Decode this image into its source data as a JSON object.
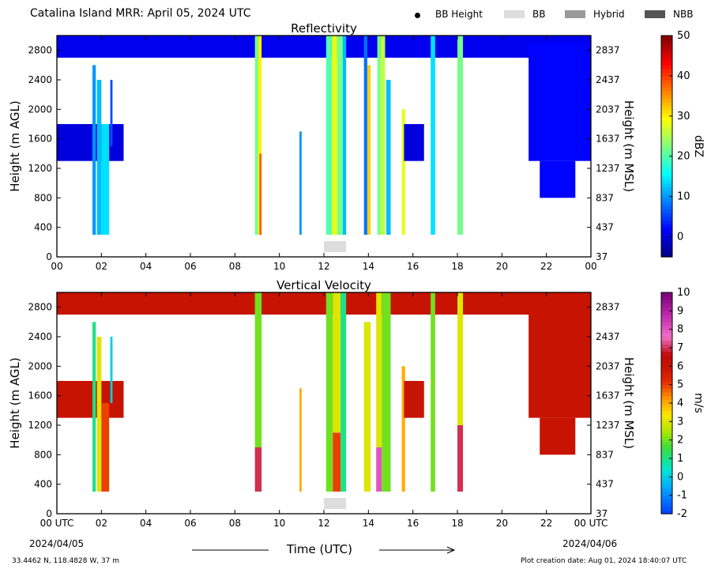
{
  "header": {
    "title": "Catalina Island MRR:  April 05, 2024 UTC",
    "legend": [
      {
        "label": "BB Height",
        "symbol": "dot",
        "color": "#000000"
      },
      {
        "label": "BB",
        "symbol": "box",
        "color": "#dddddd"
      },
      {
        "label": "Hybrid",
        "symbol": "box",
        "color": "#999999"
      },
      {
        "label": "NBB",
        "symbol": "box",
        "color": "#555555"
      }
    ]
  },
  "footer": {
    "location": "33.4462 N, 118.4828 W, 37 m",
    "creation": "Plot creation date: Aug 01, 2024 18:40:07 UTC",
    "xlabel": "Time (UTC)",
    "start_date": "2024/04/05",
    "end_date": "2024/04/06"
  },
  "chart_data": [
    {
      "type": "heatmap",
      "title": "Reflectivity",
      "ylabel": "Height (m AGL)",
      "ylabel_right": "Height (m MSL)",
      "ylim": [
        0,
        3000
      ],
      "xlim": [
        0,
        24
      ],
      "x_ticks": [
        "00",
        "02",
        "04",
        "06",
        "08",
        "10",
        "12",
        "14",
        "16",
        "18",
        "20",
        "22",
        "00"
      ],
      "y_ticks": [
        0,
        400,
        800,
        1200,
        1600,
        2000,
        2400,
        2800
      ],
      "y_ticks_right": [
        37,
        437,
        837,
        1237,
        1637,
        2037,
        2437,
        2837
      ],
      "colorbar": {
        "label": "dBZ",
        "min": -5,
        "max": 50,
        "ticks": [
          0,
          10,
          20,
          30,
          40,
          50
        ]
      },
      "bb_bars": [
        {
          "start": 12.0,
          "end": 13.0,
          "class": "BB"
        }
      ],
      "spans": [
        {
          "x0": 0.0,
          "x1": 24.0,
          "y0": 2700,
          "y1": 3000,
          "v": 1
        },
        {
          "x0": 0.0,
          "x1": 3.0,
          "y0": 1300,
          "y1": 1800,
          "v": 0
        },
        {
          "x0": 1.6,
          "x1": 1.75,
          "y0": 300,
          "y1": 2600,
          "v": 10
        },
        {
          "x0": 1.8,
          "x1": 2.0,
          "y0": 300,
          "y1": 2400,
          "v": 12
        },
        {
          "x0": 2.0,
          "x1": 2.35,
          "y0": 300,
          "y1": 1800,
          "v": 14
        },
        {
          "x0": 2.4,
          "x1": 2.5,
          "y0": 1500,
          "y1": 2400,
          "v": 6
        },
        {
          "x0": 8.9,
          "x1": 9.05,
          "y0": 300,
          "y1": 3000,
          "v": 22
        },
        {
          "x0": 9.05,
          "x1": 9.2,
          "y0": 300,
          "y1": 3000,
          "v": 30
        },
        {
          "x0": 9.1,
          "x1": 9.2,
          "y0": 300,
          "y1": 1400,
          "v": 38
        },
        {
          "x0": 10.9,
          "x1": 11.0,
          "y0": 300,
          "y1": 1700,
          "v": 10
        },
        {
          "x0": 12.1,
          "x1": 12.35,
          "y0": 300,
          "y1": 3000,
          "v": 20
        },
        {
          "x0": 12.35,
          "x1": 12.6,
          "y0": 300,
          "y1": 3000,
          "v": 28
        },
        {
          "x0": 12.6,
          "x1": 12.85,
          "y0": 300,
          "y1": 3000,
          "v": 22
        },
        {
          "x0": 12.85,
          "x1": 13.0,
          "y0": 300,
          "y1": 3000,
          "v": 12
        },
        {
          "x0": 13.8,
          "x1": 13.95,
          "y0": 300,
          "y1": 3000,
          "v": 8
        },
        {
          "x0": 13.95,
          "x1": 14.1,
          "y0": 300,
          "y1": 2600,
          "v": 32
        },
        {
          "x0": 14.4,
          "x1": 14.55,
          "y0": 300,
          "y1": 3000,
          "v": 22
        },
        {
          "x0": 14.55,
          "x1": 14.75,
          "y0": 300,
          "y1": 3000,
          "v": 26
        },
        {
          "x0": 14.8,
          "x1": 15.0,
          "y0": 300,
          "y1": 2400,
          "v": 12
        },
        {
          "x0": 15.5,
          "x1": 15.65,
          "y0": 300,
          "y1": 2000,
          "v": 28
        },
        {
          "x0": 15.6,
          "x1": 16.5,
          "y0": 1300,
          "y1": 1800,
          "v": 0
        },
        {
          "x0": 16.8,
          "x1": 17.0,
          "y0": 300,
          "y1": 3000,
          "v": 14
        },
        {
          "x0": 18.0,
          "x1": 18.25,
          "y0": 300,
          "y1": 3000,
          "v": 22
        },
        {
          "x0": 21.2,
          "x1": 24.0,
          "y0": 1300,
          "y1": 2900,
          "v": 2
        },
        {
          "x0": 21.7,
          "x1": 23.3,
          "y0": 800,
          "y1": 1300,
          "v": 2
        }
      ]
    },
    {
      "type": "heatmap",
      "title": "Vertical Velocity",
      "ylabel": "Height (m AGL)",
      "ylabel_right": "Height (m MSL)",
      "ylim": [
        0,
        3000
      ],
      "xlim": [
        0,
        24
      ],
      "x_ticks": [
        "00 UTC",
        "02",
        "04",
        "06",
        "08",
        "10",
        "12",
        "14",
        "16",
        "18",
        "20",
        "22",
        "00 UTC"
      ],
      "y_ticks": [
        0,
        400,
        800,
        1200,
        1600,
        2000,
        2400,
        2800
      ],
      "y_ticks_right": [
        37,
        437,
        837,
        1237,
        1637,
        2037,
        2437,
        2837
      ],
      "colorbar": {
        "label": "m/s",
        "min": -2,
        "max": 10,
        "ticks": [
          -2,
          -1,
          0,
          1,
          2,
          3,
          4,
          5,
          6,
          7,
          8,
          9,
          10
        ]
      },
      "bb_bars": [
        {
          "start": 12.0,
          "end": 13.0,
          "class": "BB"
        }
      ],
      "spans": [
        {
          "x0": 0.0,
          "x1": 24.0,
          "y0": 2700,
          "y1": 3000,
          "v": 6
        },
        {
          "x0": 0.0,
          "x1": 3.0,
          "y0": 1300,
          "y1": 1800,
          "v": 6
        },
        {
          "x0": 1.6,
          "x1": 1.75,
          "y0": 300,
          "y1": 2600,
          "v": 1
        },
        {
          "x0": 1.8,
          "x1": 2.0,
          "y0": 300,
          "y1": 2400,
          "v": 3
        },
        {
          "x0": 2.0,
          "x1": 2.35,
          "y0": 300,
          "y1": 1500,
          "v": 5
        },
        {
          "x0": 2.4,
          "x1": 2.5,
          "y0": 1500,
          "y1": 2400,
          "v": 0
        },
        {
          "x0": 8.9,
          "x1": 9.2,
          "y0": 900,
          "y1": 3000,
          "v": 2
        },
        {
          "x0": 8.9,
          "x1": 9.2,
          "y0": 300,
          "y1": 900,
          "v": 7
        },
        {
          "x0": 10.9,
          "x1": 11.0,
          "y0": 300,
          "y1": 1700,
          "v": 4
        },
        {
          "x0": 12.1,
          "x1": 12.4,
          "y0": 300,
          "y1": 3000,
          "v": 2
        },
        {
          "x0": 12.4,
          "x1": 12.75,
          "y0": 300,
          "y1": 1100,
          "v": 5
        },
        {
          "x0": 12.4,
          "x1": 12.75,
          "y0": 1100,
          "y1": 3000,
          "v": 3
        },
        {
          "x0": 12.75,
          "x1": 13.0,
          "y0": 300,
          "y1": 3000,
          "v": 1
        },
        {
          "x0": 13.8,
          "x1": 14.1,
          "y0": 300,
          "y1": 2600,
          "v": 3
        },
        {
          "x0": 14.35,
          "x1": 14.6,
          "y0": 300,
          "y1": 900,
          "v": 8
        },
        {
          "x0": 14.35,
          "x1": 14.6,
          "y0": 900,
          "y1": 3000,
          "v": 3
        },
        {
          "x0": 14.6,
          "x1": 15.0,
          "y0": 300,
          "y1": 3000,
          "v": 2
        },
        {
          "x0": 15.5,
          "x1": 15.65,
          "y0": 300,
          "y1": 2000,
          "v": 4
        },
        {
          "x0": 15.6,
          "x1": 16.5,
          "y0": 1300,
          "y1": 1800,
          "v": 6
        },
        {
          "x0": 16.8,
          "x1": 17.0,
          "y0": 300,
          "y1": 3000,
          "v": 2
        },
        {
          "x0": 18.0,
          "x1": 18.25,
          "y0": 300,
          "y1": 1200,
          "v": 7
        },
        {
          "x0": 18.0,
          "x1": 18.25,
          "y0": 1200,
          "y1": 3000,
          "v": 3
        },
        {
          "x0": 21.2,
          "x1": 24.0,
          "y0": 1300,
          "y1": 2900,
          "v": 6
        },
        {
          "x0": 21.7,
          "x1": 23.3,
          "y0": 800,
          "y1": 1300,
          "v": 6
        }
      ]
    }
  ]
}
